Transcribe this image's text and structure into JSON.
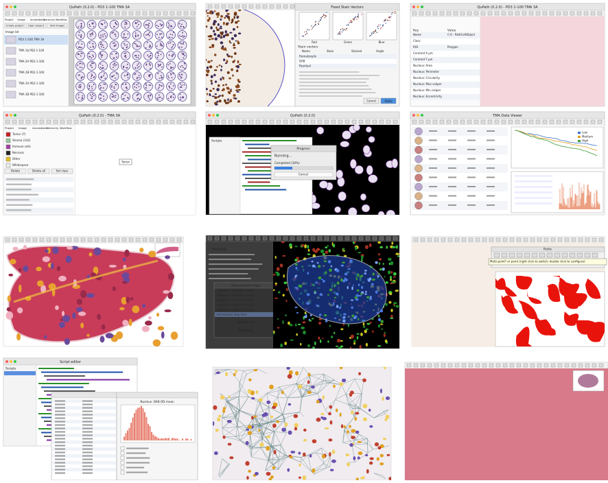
{
  "panels": {
    "tma": {
      "title": "QuPath (0.2.0) - PD3 1-100 TMA 3A",
      "tabs": [
        "Project",
        "Image",
        "Annotations",
        "Hierarchy",
        "Workflow"
      ],
      "buttons": [
        "Create project",
        "Open project",
        "Add images"
      ],
      "header": "Image list",
      "items": [
        "PD3 1-100 TMA 3A",
        "TMA 1b PD3 1-100",
        "TMA 2A PD3 1-100",
        "TMA 2B PD3 1-100",
        "TMA 3A PD3 1-100",
        "TMA 3B PD3 1-100"
      ]
    },
    "stain_vectors": {
      "title": "Fixed Stain Vectors",
      "plots": [
        "Red",
        "Green",
        "Blue"
      ],
      "section": "Stain vectors",
      "columns": [
        "Name",
        "Stain",
        "Stained",
        "Angle"
      ],
      "rows": [
        "Hematoxylin",
        "DAB",
        "Residual"
      ],
      "buttons": [
        "Cancel",
        "Apply"
      ]
    },
    "cell_measurements": {
      "title": "QuPath (0.2.0) - PD3 1-100 TMA 3A",
      "columns": [
        "Key",
        "Value"
      ],
      "rows": [
        {
          "key": "Name",
          "value": "C-6 - PathCellObject"
        },
        {
          "key": "Class"
        },
        {
          "key": "ROI",
          "value": "Polygon"
        },
        {
          "key": "Centroid X µm"
        },
        {
          "key": "Centroid Y µm"
        },
        {
          "key": "Nucleus: Area"
        },
        {
          "key": "Nucleus: Perimeter"
        },
        {
          "key": "Nucleus: Circularity"
        },
        {
          "key": "Nucleus: Max caliper"
        },
        {
          "key": "Nucleus: Min caliper"
        },
        {
          "key": "Nucleus: Eccentricity"
        }
      ]
    },
    "annotations": {
      "title": "QuPath (0.2.0) - TMA 3A",
      "tabs": [
        "Project",
        "Image",
        "Annotations",
        "Hierarchy",
        "Workflow"
      ],
      "classes": [
        "Tumor (7)",
        "Stroma (142)",
        "Immune cells",
        "Necrosis",
        "Other",
        "Whitespace"
      ],
      "buttons": [
        "Delete",
        "Delete all",
        "Set class"
      ],
      "label": "Tumor"
    },
    "script_progress": {
      "title": "QuPath (0.2.0)",
      "scripts_label": "Scripts",
      "dialog": "Progress",
      "status": "Running...",
      "progress": "Completed (30%)",
      "button": "Cancel"
    },
    "tma_viewer": {
      "title": "TMA Data Viewer",
      "legend": [
        "Low",
        "Medium",
        "High"
      ]
    },
    "measurement_maps": {
      "section": "Properties",
      "dialog": "Measurement maps",
      "items": [
        "Cytoplasm: Channel 1 mean",
        "Cytoplasm: Channel 2 mean",
        "Cytoplasm: Channel 3 mean",
        "Cytoplasm: Channel 4 mean",
        "Cytoplasm: Channel 5 mean",
        "Nucleus/Cell area ratio"
      ],
      "buttons": [
        "Update map",
        "Show map"
      ]
    },
    "points": {
      "title": "Points",
      "tooltip": "Multi-point* or point (right click to switch; double click to configure)"
    },
    "script_editor": {
      "title": "Script editor",
      "scripts_label": "Scripts",
      "chart_title": "Nucleus: DAB OD mean"
    }
  }
}
